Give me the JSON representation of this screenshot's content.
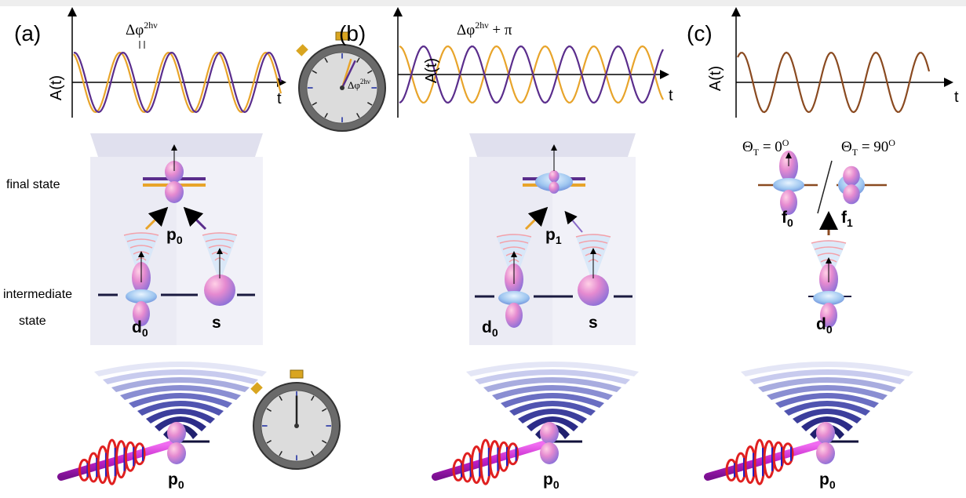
{
  "panel_a": {
    "label": "(a)",
    "y_label": "A(t)",
    "x_label": "t",
    "phase": {
      "base": "Δφ",
      "sup": "2hν"
    },
    "clock_label": {
      "base": "Δφ",
      "sup": "2hν"
    },
    "final_state": "final state",
    "intermediate_state": [
      "intermediate",
      "state"
    ],
    "final_orbital": {
      "base": "p",
      "sub": "0"
    },
    "intermediate_orbitals": [
      {
        "base": "d",
        "sub": "0"
      },
      {
        "base": "s"
      }
    ],
    "initial_orbital": {
      "base": "p",
      "sub": "0"
    }
  },
  "panel_b": {
    "label": "(b)",
    "y_label": "A(t)",
    "x_label": "t",
    "phase": {
      "base": "Δφ",
      "sup": "2hν",
      "suffix": " + π"
    },
    "final_orbital": {
      "base": "p",
      "sub": "1"
    },
    "intermediate_orbitals": [
      {
        "base": "d",
        "sub": "0"
      },
      {
        "base": "s"
      }
    ],
    "initial_orbital": {
      "base": "p",
      "sub": "0"
    }
  },
  "panel_c": {
    "label": "(c)",
    "y_label": "A(t)",
    "x_label": "t",
    "angles": [
      {
        "base": "Θ",
        "sub": "T",
        "rest": " = 0",
        "sup": "O"
      },
      {
        "base": "Θ",
        "sub": "T",
        "rest": " = 90",
        "sup": "O"
      }
    ],
    "final_orbitals": [
      {
        "base": "f",
        "sub": "0"
      },
      {
        "base": "f",
        "sub": "1"
      }
    ],
    "intermediate_orbital": {
      "base": "d",
      "sub": "0"
    },
    "initial_orbital": {
      "base": "p",
      "sub": "0"
    }
  }
}
